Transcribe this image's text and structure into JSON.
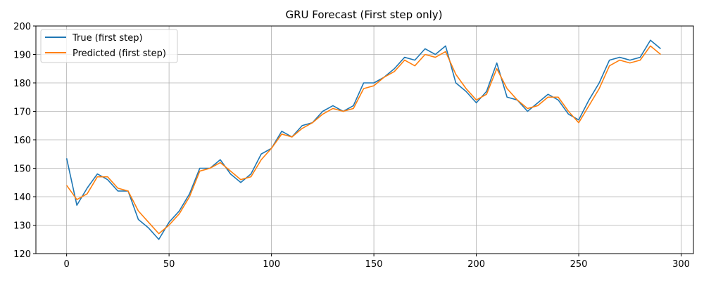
{
  "chart_data": {
    "type": "line",
    "title": "GRU Forecast (First step only)",
    "xlabel": "",
    "ylabel": "",
    "xlim": [
      -15,
      306
    ],
    "ylim": [
      120,
      200
    ],
    "xticks": [
      0,
      50,
      100,
      150,
      200,
      250,
      300
    ],
    "yticks": [
      120,
      130,
      140,
      150,
      160,
      170,
      180,
      190,
      200
    ],
    "grid": true,
    "legend_position": "top-left",
    "series": [
      {
        "name": "True (first step)",
        "color": "#1f77b4",
        "x": [
          0,
          5,
          10,
          15,
          20,
          25,
          30,
          35,
          40,
          45,
          50,
          55,
          60,
          65,
          70,
          75,
          80,
          85,
          90,
          95,
          100,
          105,
          110,
          115,
          120,
          125,
          130,
          135,
          140,
          145,
          150,
          155,
          160,
          165,
          170,
          175,
          180,
          185,
          190,
          195,
          200,
          205,
          210,
          215,
          220,
          225,
          230,
          235,
          240,
          245,
          250,
          255,
          260,
          265,
          270,
          275,
          280,
          285,
          290
        ],
        "y": [
          153.5,
          137,
          143,
          148,
          146,
          142,
          142,
          132,
          129,
          125,
          131,
          135,
          141,
          150,
          150,
          153,
          148,
          145,
          148,
          155,
          157,
          163,
          161,
          165,
          166,
          170,
          172,
          170,
          172,
          180,
          180,
          182,
          185,
          189,
          188,
          192,
          190,
          193,
          180,
          177,
          173,
          177,
          187,
          175,
          174,
          170,
          173,
          176,
          174,
          169,
          167,
          174,
          180,
          188,
          189,
          188,
          189,
          195,
          192
        ]
      },
      {
        "name": "Predicted (first step)",
        "color": "#ff7f0e",
        "x": [
          0,
          5,
          10,
          15,
          20,
          25,
          30,
          35,
          40,
          45,
          50,
          55,
          60,
          65,
          70,
          75,
          80,
          85,
          90,
          95,
          100,
          105,
          110,
          115,
          120,
          125,
          130,
          135,
          140,
          145,
          150,
          155,
          160,
          165,
          170,
          175,
          180,
          185,
          190,
          195,
          200,
          205,
          210,
          215,
          220,
          225,
          230,
          235,
          240,
          245,
          250,
          255,
          260,
          265,
          270,
          275,
          280,
          285,
          290
        ],
        "y": [
          144,
          139,
          141,
          147,
          147,
          143,
          142,
          135,
          131,
          127,
          130,
          134,
          140,
          149,
          150,
          152,
          149,
          146,
          147,
          153,
          157,
          162,
          161,
          164,
          166,
          169,
          171,
          170,
          171,
          178,
          179,
          182,
          184,
          188,
          186,
          190,
          189,
          191,
          183,
          178,
          174,
          176,
          185,
          178,
          174,
          171,
          172,
          175,
          175,
          170,
          166,
          172,
          178,
          186,
          188,
          187,
          188,
          193,
          190
        ]
      }
    ]
  }
}
